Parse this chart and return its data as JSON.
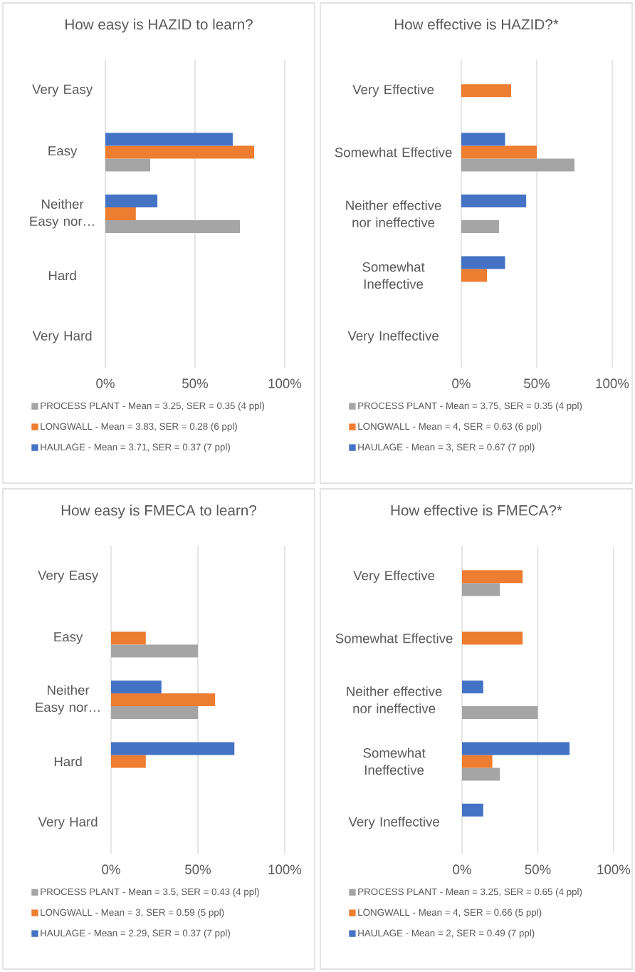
{
  "chart_data": [
    {
      "type": "bar",
      "orientation": "horizontal",
      "title": "How easy is HAZID to learn?",
      "categories": [
        "Very Easy",
        "Easy",
        "Neither Easy nor…",
        "Hard",
        "Very Hard"
      ],
      "series": [
        {
          "name": "PROCESS PLANT - Mean = 3.25, SER = 0.35 (4 ppl)",
          "color": "#a5a5a5",
          "values": [
            0,
            25,
            75,
            0,
            0
          ]
        },
        {
          "name": "LONGWALL - Mean = 3.83, SER = 0.28 (6 ppl)",
          "color": "#ed7d31",
          "values": [
            0,
            83,
            17,
            0,
            0
          ]
        },
        {
          "name": "HAULAGE - Mean = 3.71, SER = 0.37 (7 ppl)",
          "color": "#4472c4",
          "values": [
            0,
            71,
            29,
            0,
            0
          ]
        }
      ],
      "xlim": [
        0,
        100
      ],
      "xticks": [
        {
          "value": 0,
          "label": "0%"
        },
        {
          "value": 50,
          "label": "50%"
        },
        {
          "value": 100,
          "label": "100%"
        }
      ],
      "grid": "x",
      "legend": "bottom"
    },
    {
      "type": "bar",
      "orientation": "horizontal",
      "title": "How effective is HAZID?*",
      "categories": [
        "Very Effective",
        "Somewhat Effective",
        "Neither effective nor ineffective",
        "Somewhat Ineffective",
        "Very Ineffective"
      ],
      "series": [
        {
          "name": "PROCESS PLANT - Mean = 3.75, SER = 0.35 (4 ppl)",
          "color": "#a5a5a5",
          "values": [
            0,
            75,
            25,
            0,
            0
          ]
        },
        {
          "name": "LONGWALL - Mean = 4, SER = 0.63 (6 ppl)",
          "color": "#ed7d31",
          "values": [
            33,
            50,
            0,
            17,
            0
          ]
        },
        {
          "name": "HAULAGE - Mean = 3, SER = 0.67 (7 ppl)",
          "color": "#4472c4",
          "values": [
            0,
            29,
            43,
            29,
            0
          ]
        }
      ],
      "xlim": [
        0,
        100
      ],
      "xticks": [
        {
          "value": 0,
          "label": "0%"
        },
        {
          "value": 50,
          "label": "50%"
        },
        {
          "value": 100,
          "label": "100%"
        }
      ],
      "grid": "x",
      "legend": "bottom"
    },
    {
      "type": "bar",
      "orientation": "horizontal",
      "title": "How easy is FMECA to learn?",
      "categories": [
        "Very Easy",
        "Easy",
        "Neither Easy nor…",
        "Hard",
        "Very Hard"
      ],
      "series": [
        {
          "name": "PROCESS PLANT - Mean = 3.5, SER = 0.43 (4 ppl)",
          "color": "#a5a5a5",
          "values": [
            0,
            50,
            50,
            0,
            0
          ]
        },
        {
          "name": "LONGWALL - Mean = 3, SER = 0.59 (5 ppl)",
          "color": "#ed7d31",
          "values": [
            0,
            20,
            60,
            20,
            0
          ]
        },
        {
          "name": "HAULAGE - Mean = 2.29, SER = 0.37 (7 ppl)",
          "color": "#4472c4",
          "values": [
            0,
            0,
            29,
            71,
            0
          ]
        }
      ],
      "xlim": [
        0,
        100
      ],
      "xticks": [
        {
          "value": 0,
          "label": "0%"
        },
        {
          "value": 50,
          "label": "50%"
        },
        {
          "value": 100,
          "label": "100%"
        }
      ],
      "grid": "x",
      "legend": "bottom"
    },
    {
      "type": "bar",
      "orientation": "horizontal",
      "title": "How effective is FMECA?*",
      "categories": [
        "Very Effective",
        "Somewhat Effective",
        "Neither effective nor ineffective",
        "Somewhat Ineffective",
        "Very Ineffective"
      ],
      "series": [
        {
          "name": "PROCESS PLANT - Mean = 3.25, SER = 0.65 (4 ppl)",
          "color": "#a5a5a5",
          "values": [
            25,
            0,
            50,
            25,
            0
          ]
        },
        {
          "name": "LONGWALL - Mean = 4, SER = 0.66 (5 ppl)",
          "color": "#ed7d31",
          "values": [
            40,
            40,
            0,
            20,
            0
          ]
        },
        {
          "name": "HAULAGE - Mean = 2, SER = 0.49 (7 ppl)",
          "color": "#4472c4",
          "values": [
            0,
            0,
            14,
            71,
            14
          ]
        }
      ],
      "xlim": [
        0,
        100
      ],
      "xticks": [
        {
          "value": 0,
          "label": "0%"
        },
        {
          "value": 50,
          "label": "50%"
        },
        {
          "value": 100,
          "label": "100%"
        }
      ],
      "grid": "x",
      "legend": "bottom"
    }
  ]
}
